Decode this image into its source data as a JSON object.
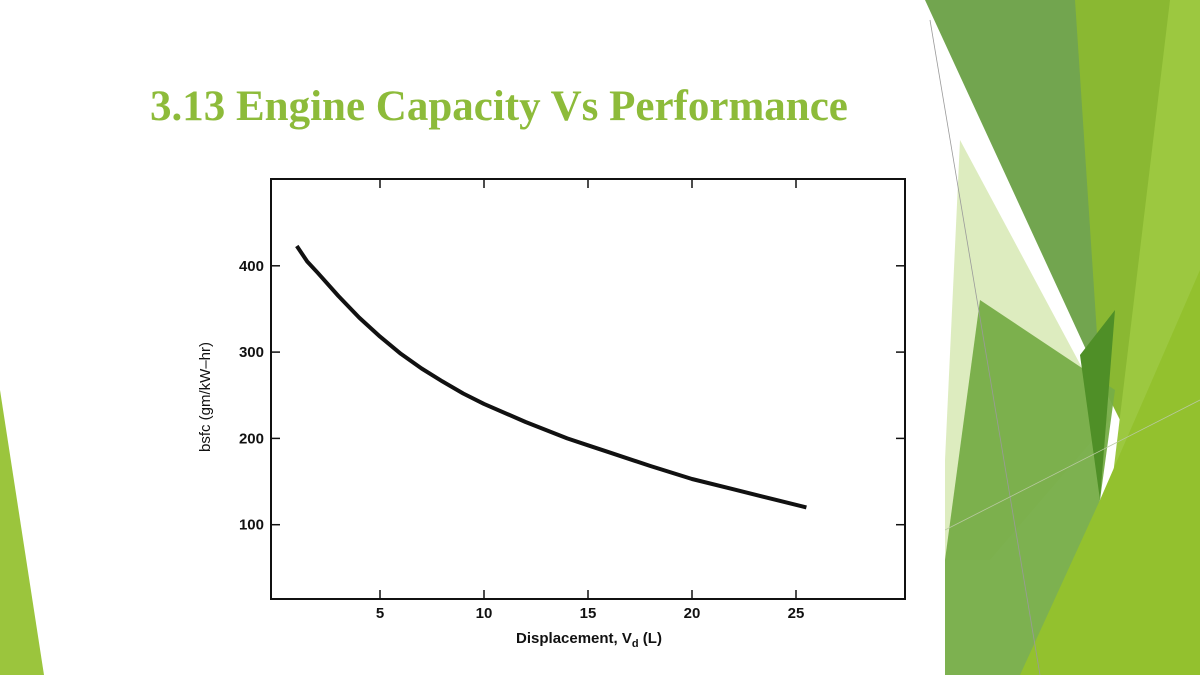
{
  "slide": {
    "title": "3.13 Engine Capacity Vs Performance",
    "colors": {
      "title": "#8dbb3a",
      "accent_dark": "#5f9a3e",
      "accent_mid": "#7cb342",
      "accent_light": "#9bc53d",
      "accent_pale": "#d7e8b4",
      "curve": "#111111"
    }
  },
  "chart_data": {
    "type": "line",
    "title": "",
    "xlabel": "Displacement, Vd (L)",
    "xlabel_main": "Displacement, V",
    "xlabel_sub": "d",
    "xlabel_unit": " (L)",
    "ylabel": "bsfc (gm/kW–hr)",
    "xlim": [
      0,
      30
    ],
    "ylim": [
      15,
      500
    ],
    "x_ticks": [
      5,
      10,
      15,
      20,
      25
    ],
    "y_ticks": [
      100,
      200,
      300,
      400
    ],
    "x_tick_labels": [
      "5",
      "10",
      "15",
      "20",
      "25"
    ],
    "y_tick_labels": [
      "100",
      "200",
      "300",
      "400"
    ],
    "grid": false,
    "legend": null,
    "series": [
      {
        "name": "bsfc",
        "x": [
          1.0,
          1.5,
          2,
          3,
          4,
          5,
          6,
          7,
          8,
          9,
          10,
          12,
          14,
          15,
          16,
          18,
          20,
          22,
          24,
          25.5
        ],
        "y": [
          423,
          405,
          392,
          365,
          340,
          318,
          298,
          281,
          266,
          252,
          240,
          219,
          200,
          192,
          184,
          168,
          153,
          141,
          129,
          120
        ]
      }
    ]
  }
}
